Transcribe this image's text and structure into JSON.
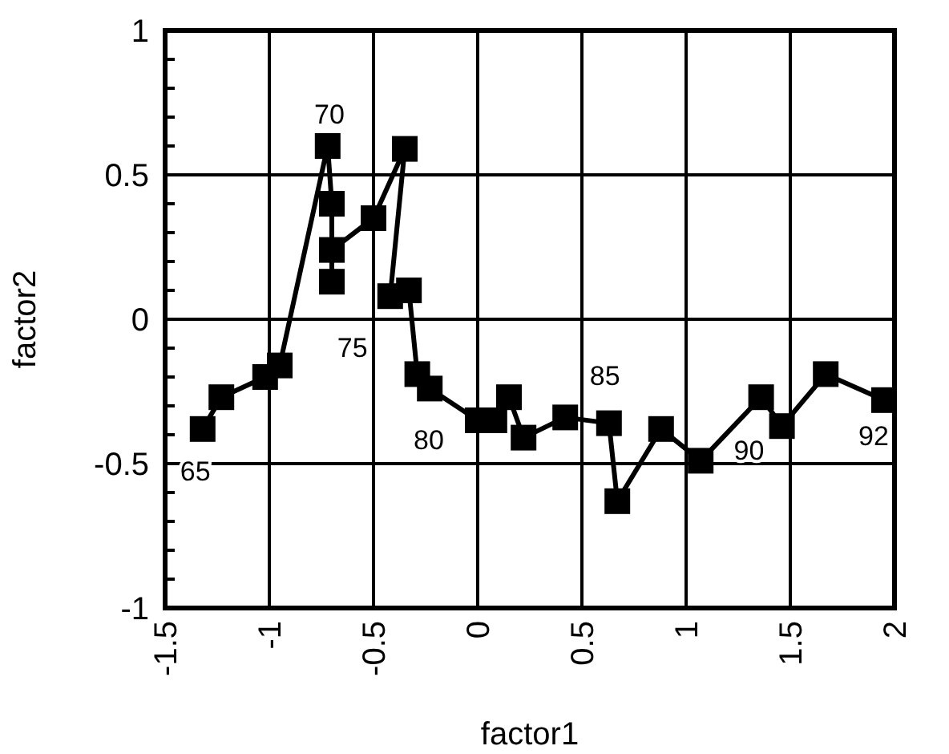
{
  "chart_data": {
    "type": "line",
    "xlabel": "factor1",
    "ylabel": "factor2",
    "xlim": [
      -1.5,
      2
    ],
    "xticks": [
      -1.5,
      -1,
      -0.5,
      0,
      0.5,
      1,
      1.5,
      2
    ],
    "ylim": [
      -1,
      1
    ],
    "yticks": [
      -1,
      -0.5,
      0,
      0.5,
      1
    ],
    "grid": true,
    "marker": "square",
    "line_style": "solid",
    "series": [
      {
        "color": "#000000",
        "x": [
          -1.32,
          -1.23,
          -1.02,
          -0.95,
          -0.72,
          -0.7,
          -0.7,
          -0.7,
          -0.5,
          -0.35,
          -0.42,
          -0.33,
          -0.29,
          -0.23,
          0.0,
          0.08,
          0.15,
          0.22,
          0.42,
          0.63,
          0.67,
          0.88,
          1.07,
          1.36,
          1.46,
          1.67,
          1.95
        ],
        "values": [
          -0.38,
          -0.27,
          -0.2,
          -0.16,
          0.6,
          0.4,
          0.13,
          0.24,
          0.35,
          0.59,
          0.08,
          0.1,
          -0.19,
          -0.24,
          -0.35,
          -0.35,
          -0.27,
          -0.41,
          -0.34,
          -0.36,
          -0.63,
          -0.38,
          -0.49,
          -0.27,
          -0.37,
          -0.19,
          -0.28
        ]
      }
    ],
    "annotations": [
      {
        "text": "65",
        "x": -1.32,
        "y": -0.38
      },
      {
        "text": "70",
        "x": -0.7,
        "y": 0.4
      },
      {
        "text": "75",
        "x": -0.42,
        "y": 0.08
      },
      {
        "text": "80",
        "x": 0.0,
        "y": -0.35
      },
      {
        "text": "85",
        "x": 0.63,
        "y": -0.36
      },
      {
        "text": "90",
        "x": 1.46,
        "y": -0.37
      },
      {
        "text": "92",
        "x": 1.95,
        "y": -0.28
      }
    ]
  }
}
